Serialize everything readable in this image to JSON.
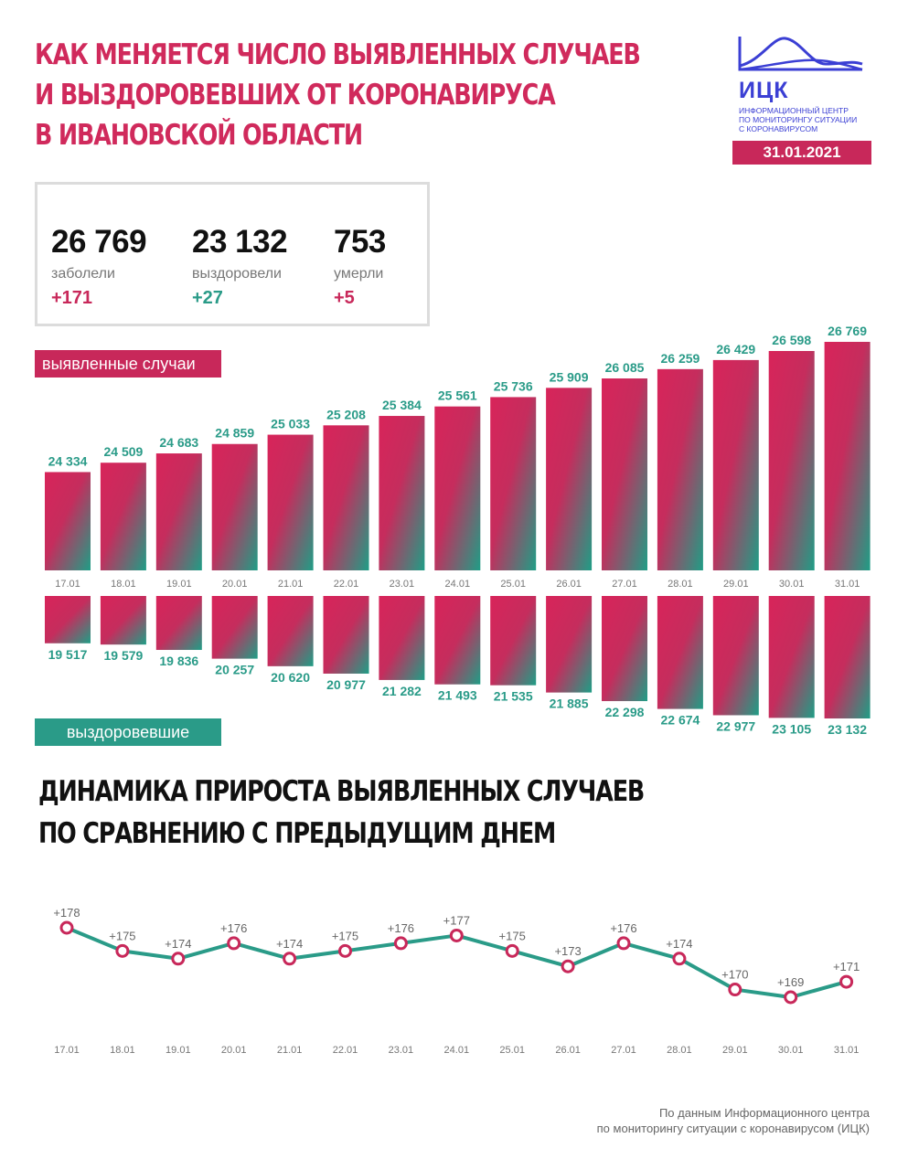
{
  "title_lines": [
    "КАК МЕНЯЕТСЯ ЧИСЛО ВЫЯВЛЕННЫХ СЛУЧАЕВ",
    "И ВЫЗДОРОВЕВШИХ ОТ КОРОНАВИРУСА",
    "В ИВАНОВСКОЙ ОБЛАСТИ"
  ],
  "logo": {
    "abbr": "ИЦК",
    "sub_lines": [
      "ИНФОРМАЦИОННЫЙ ЦЕНТР",
      "ПО МОНИТОРИНГУ СИТУАЦИИ",
      "С КОРОНАВИРУСОМ"
    ]
  },
  "date": "31.01.2021",
  "stats": [
    {
      "value": "26 769",
      "label": "заболели",
      "delta": "+171"
    },
    {
      "value": "23 132",
      "label": "выздоровели",
      "delta": "+27"
    },
    {
      "value": "753",
      "label": "умерли",
      "delta": "+5"
    }
  ],
  "tags": {
    "cases": "выявленные случаи",
    "recovered": "выздоровевшие"
  },
  "subtitle_lines": [
    "ДИНАМИКА ПРИРОСТА ВЫЯВЛЕННЫХ СЛУЧАЕВ",
    "ПО СРАВНЕНИЮ С ПРЕДЫДУЩИМ ДНЕМ"
  ],
  "footer_lines": [
    "По данным Информационного центра",
    "по мониторингу ситуации с коронавирусом (ИЦК)"
  ],
  "colors": {
    "red": "#c8285a",
    "green": "#2a9b88",
    "line": "#2a9b88",
    "marker": "#c8285a"
  },
  "chart_data": [
    {
      "type": "bar",
      "categories": [
        "17.01",
        "18.01",
        "19.01",
        "20.01",
        "21.01",
        "22.01",
        "23.01",
        "24.01",
        "25.01",
        "26.01",
        "27.01",
        "28.01",
        "29.01",
        "30.01",
        "31.01"
      ],
      "series": [
        {
          "name": "выявленные случаи",
          "values": [
            24334,
            24509,
            24683,
            24859,
            25033,
            25208,
            25384,
            25561,
            25736,
            25909,
            26085,
            26259,
            26429,
            26598,
            26769
          ],
          "labels": [
            "24 334",
            "24 509",
            "24 683",
            "24 859",
            "25 033",
            "25 208",
            "25 384",
            "25 561",
            "25 736",
            "25 909",
            "26 085",
            "26 259",
            "26 429",
            "26 598",
            "26 769"
          ]
        },
        {
          "name": "выздоровевшие",
          "values": [
            19517,
            19579,
            19836,
            20257,
            20620,
            20977,
            21282,
            21493,
            21535,
            21885,
            22298,
            22674,
            22977,
            23105,
            23132
          ],
          "labels": [
            "19 517",
            "19 579",
            "19 836",
            "20 257",
            "20 620",
            "20 977",
            "21 282",
            "21 493",
            "21 535",
            "21 885",
            "22 298",
            "22 674",
            "22 977",
            "23 105",
            "23 132"
          ]
        }
      ]
    },
    {
      "type": "line",
      "x": [
        "17.01",
        "18.01",
        "19.01",
        "20.01",
        "21.01",
        "22.01",
        "23.01",
        "24.01",
        "25.01",
        "26.01",
        "27.01",
        "28.01",
        "29.01",
        "30.01",
        "31.01"
      ],
      "values": [
        178,
        175,
        174,
        176,
        174,
        175,
        176,
        177,
        175,
        173,
        176,
        174,
        170,
        169,
        171
      ],
      "labels": [
        "+178",
        "+175",
        "+174",
        "+176",
        "+174",
        "+175",
        "+176",
        "+177",
        "+175",
        "+173",
        "+176",
        "+174",
        "+170",
        "+169",
        "+171"
      ]
    }
  ]
}
